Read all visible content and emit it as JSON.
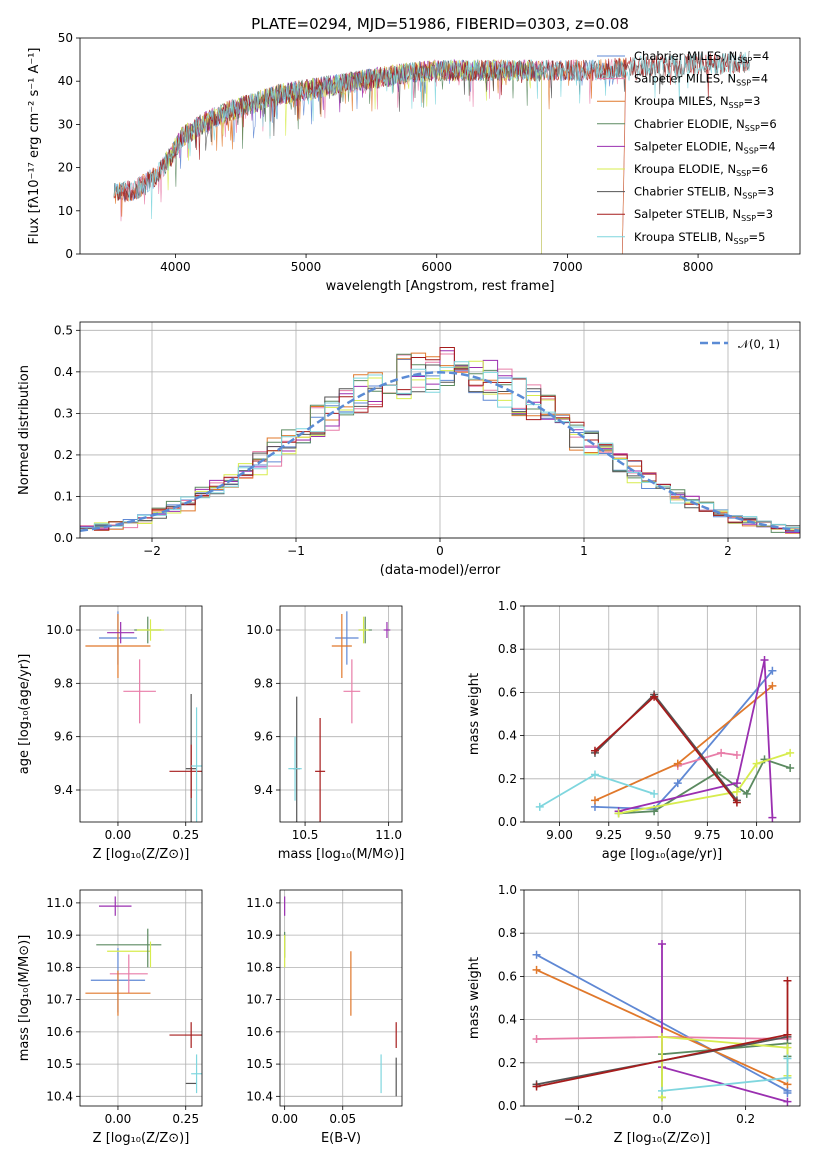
{
  "title": "PLATE=0294, MJD=51986, FIBERID=0303, z=0.08",
  "colors": {
    "chabrier_miles": "#5f88d4",
    "salpeter_miles": "#e87da8",
    "kroupa_miles": "#e0782b",
    "chabrier_elodie": "#5b8a60",
    "salpeter_elodie": "#9a2fb0",
    "kroupa_elodie": "#d7ec4e",
    "chabrier_stelib": "#555555",
    "salpeter_stelib": "#a61c1c",
    "kroupa_stelib": "#7fd6de"
  },
  "chart_data": [
    {
      "id": "spectrum",
      "type": "line",
      "xlabel": "wavelength [Angstrom, rest frame]",
      "ylabel": "Flux [fλ10⁻¹⁷ erg cm⁻² s⁻¹ A⁻¹]",
      "xlim": [
        3270,
        8780
      ],
      "ylim": [
        0,
        50
      ],
      "xticks": [
        4000,
        5000,
        6000,
        7000,
        8000
      ],
      "yticks": [
        0,
        10,
        20,
        30,
        40,
        50
      ],
      "grid": false,
      "legend_position": "right",
      "continuum": {
        "x": [
          3530,
          3700,
          3850,
          3950,
          4050,
          4200,
          4400,
          4600,
          4800,
          5000,
          5200,
          5400,
          5600,
          5800,
          6000,
          6200,
          6400,
          6600,
          6800,
          7000,
          7200,
          7400,
          7600,
          7800,
          8000,
          8200,
          8400
        ],
        "y": [
          14,
          15,
          18,
          22,
          27,
          30,
          33,
          35,
          37,
          38,
          39,
          40,
          41,
          42,
          42.5,
          42.5,
          42.5,
          42.5,
          42.5,
          42.5,
          42.5,
          43,
          43.5,
          43.5,
          44,
          44,
          44.5
        ]
      },
      "models": [
        {
          "name": "Chabrier MILES, N_SSP=4",
          "n_ssp": 4,
          "range": [
            3530,
            7450
          ],
          "color_key": "chabrier_miles"
        },
        {
          "name": "Salpeter MILES, N_SSP=4",
          "n_ssp": 4,
          "range": [
            3530,
            7450
          ],
          "color_key": "salpeter_miles"
        },
        {
          "name": "Kroupa MILES, N_SSP=3",
          "n_ssp": 3,
          "range": [
            3530,
            7450
          ],
          "color_key": "kroupa_miles"
        },
        {
          "name": "Chabrier ELODIE, N_SSP=6",
          "n_ssp": 6,
          "range": [
            3920,
            6800
          ],
          "color_key": "chabrier_elodie"
        },
        {
          "name": "Salpeter ELODIE, N_SSP=4",
          "n_ssp": 4,
          "range": [
            3920,
            6800
          ],
          "color_key": "salpeter_elodie"
        },
        {
          "name": "Kroupa ELODIE, N_SSP=6",
          "n_ssp": 6,
          "range": [
            3920,
            6800
          ],
          "color_key": "kroupa_elodie"
        },
        {
          "name": "Chabrier STELIB, N_SSP=3",
          "n_ssp": 3,
          "range": [
            3530,
            8400
          ],
          "color_key": "chabrier_stelib"
        },
        {
          "name": "Salpeter STELIB, N_SSP=3",
          "n_ssp": 3,
          "range": [
            3530,
            8400
          ],
          "color_key": "salpeter_stelib"
        },
        {
          "name": "Kroupa STELIB, N_SSP=5",
          "n_ssp": 5,
          "range": [
            3530,
            8400
          ],
          "color_key": "kroupa_stelib"
        }
      ]
    },
    {
      "id": "residuals",
      "type": "histogram",
      "xlabel": "(data-model)/error",
      "ylabel": "Normed distribution",
      "xlim": [
        -2.5,
        2.5
      ],
      "ylim": [
        0,
        0.52
      ],
      "xticks": [
        -2,
        -1,
        0,
        1,
        2
      ],
      "yticks": [
        0.0,
        0.1,
        0.2,
        0.3,
        0.4,
        0.5
      ],
      "grid": true,
      "legend_position": "top-right",
      "legend_label": "𝒩(0, 1)",
      "bin_width": 0.1,
      "reference": "normal(0,1)"
    },
    {
      "id": "age-vs-Z",
      "type": "scatter",
      "xlabel": "Z [log₁₀(Z/Z⊙)]",
      "ylabel": "age  [log₁₀(age/yr)]",
      "xlim": [
        -0.14,
        0.31
      ],
      "ylim": [
        9.28,
        10.09
      ],
      "xticks": [
        0.0,
        0.25
      ],
      "yticks": [
        9.4,
        9.6,
        9.8,
        10.0
      ],
      "grid": true,
      "points": [
        {
          "color_key": "chabrier_miles",
          "x": 0.0,
          "y": 9.97,
          "xerr": 0.07,
          "yerr": 0.1
        },
        {
          "color_key": "salpeter_miles",
          "x": 0.08,
          "y": 9.77,
          "xerr": 0.06,
          "yerr": 0.12
        },
        {
          "color_key": "kroupa_miles",
          "x": 0.0,
          "y": 9.94,
          "xerr": 0.12,
          "yerr": 0.12
        },
        {
          "color_key": "chabrier_elodie",
          "x": 0.11,
          "y": 10.0,
          "xerr": 0.05,
          "yerr": 0.05
        },
        {
          "color_key": "salpeter_elodie",
          "x": 0.01,
          "y": 9.99,
          "xerr": 0.05,
          "yerr": 0.04
        },
        {
          "color_key": "kroupa_elodie",
          "x": 0.12,
          "y": 10.0,
          "xerr": 0.05,
          "yerr": 0.04
        },
        {
          "color_key": "chabrier_stelib",
          "x": 0.27,
          "y": 9.48,
          "xerr": 0.02,
          "yerr": 0.28
        },
        {
          "color_key": "salpeter_stelib",
          "x": 0.27,
          "y": 9.47,
          "xerr": 0.08,
          "yerr": 0.1
        },
        {
          "color_key": "kroupa_stelib",
          "x": 0.29,
          "y": 9.49,
          "xerr": 0.02,
          "yerr": 0.22
        }
      ]
    },
    {
      "id": "age-vs-mass",
      "type": "scatter",
      "xlabel": "mass [log₁₀(M/M⊙)]",
      "ylabel": "",
      "xlim": [
        10.35,
        11.08
      ],
      "ylim": [
        9.28,
        10.09
      ],
      "xticks": [
        10.5,
        11.0
      ],
      "yticks": [
        9.4,
        9.6,
        9.8,
        10.0
      ],
      "grid": true,
      "points": [
        {
          "color_key": "chabrier_miles",
          "x": 10.75,
          "y": 9.97,
          "xerr": 0.07,
          "yerr": 0.1
        },
        {
          "color_key": "salpeter_miles",
          "x": 10.78,
          "y": 9.77,
          "xerr": 0.05,
          "yerr": 0.12
        },
        {
          "color_key": "kroupa_miles",
          "x": 10.72,
          "y": 9.94,
          "xerr": 0.06,
          "yerr": 0.12
        },
        {
          "color_key": "chabrier_elodie",
          "x": 10.86,
          "y": 10.0,
          "xerr": 0.04,
          "yerr": 0.05
        },
        {
          "color_key": "salpeter_elodie",
          "x": 10.99,
          "y": 10.0,
          "xerr": 0.02,
          "yerr": 0.03
        },
        {
          "color_key": "kroupa_elodie",
          "x": 10.85,
          "y": 10.0,
          "xerr": 0.03,
          "yerr": 0.05
        },
        {
          "color_key": "chabrier_stelib",
          "x": 10.45,
          "y": 9.48,
          "xerr": 0.02,
          "yerr": 0.27
        },
        {
          "color_key": "salpeter_stelib",
          "x": 10.59,
          "y": 9.47,
          "xerr": 0.03,
          "yerr": 0.2
        },
        {
          "color_key": "kroupa_stelib",
          "x": 10.44,
          "y": 9.48,
          "xerr": 0.04,
          "yerr": 0.12
        }
      ]
    },
    {
      "id": "weight-vs-age",
      "type": "line",
      "xlabel": "age  [log₁₀(age/yr)]",
      "ylabel": "mass weight",
      "xlim": [
        8.82,
        10.22
      ],
      "ylim": [
        0,
        1
      ],
      "xticks": [
        9.0,
        9.25,
        9.5,
        9.75,
        10.0
      ],
      "yticks": [
        0.0,
        0.2,
        0.4,
        0.6,
        0.8,
        1.0
      ],
      "grid": true,
      "series": [
        {
          "color_key": "chabrier_miles",
          "x": [
            9.18,
            9.48,
            9.6,
            10.08
          ],
          "y": [
            0.07,
            0.06,
            0.18,
            0.7
          ]
        },
        {
          "color_key": "salpeter_miles",
          "x": [
            9.6,
            9.82,
            9.9
          ],
          "y": [
            0.26,
            0.32,
            0.31
          ]
        },
        {
          "color_key": "kroupa_miles",
          "x": [
            9.18,
            9.6,
            10.08
          ],
          "y": [
            0.1,
            0.27,
            0.63
          ]
        },
        {
          "color_key": "chabrier_elodie",
          "x": [
            9.3,
            9.48,
            9.8,
            9.95,
            10.04,
            10.17
          ],
          "y": [
            0.04,
            0.05,
            0.23,
            0.13,
            0.29,
            0.25
          ]
        },
        {
          "color_key": "salpeter_elodie",
          "x": [
            9.3,
            9.9,
            10.04,
            10.08
          ],
          "y": [
            0.05,
            0.18,
            0.75,
            0.02
          ]
        },
        {
          "color_key": "kroupa_elodie",
          "x": [
            9.3,
            9.9,
            10.0,
            10.17
          ],
          "y": [
            0.04,
            0.14,
            0.27,
            0.32
          ]
        },
        {
          "color_key": "chabrier_stelib",
          "x": [
            9.18,
            9.48,
            9.9
          ],
          "y": [
            0.32,
            0.59,
            0.1
          ]
        },
        {
          "color_key": "salpeter_stelib",
          "x": [
            9.18,
            9.48,
            9.9
          ],
          "y": [
            0.33,
            0.58,
            0.09
          ]
        },
        {
          "color_key": "kroupa_stelib",
          "x": [
            8.9,
            9.18,
            9.48
          ],
          "y": [
            0.07,
            0.22,
            0.13
          ]
        }
      ]
    },
    {
      "id": "mass-vs-Z",
      "type": "scatter",
      "xlabel": "Z [log₁₀(Z/Z⊙)]",
      "ylabel": "mass [log₁₀(M/M⊙)]",
      "xlim": [
        -0.14,
        0.31
      ],
      "ylim": [
        10.37,
        11.04
      ],
      "xticks": [
        0.0,
        0.25
      ],
      "yticks": [
        10.4,
        10.5,
        10.6,
        10.7,
        10.8,
        10.9,
        11.0
      ],
      "grid": true,
      "points": [
        {
          "color_key": "chabrier_miles",
          "x": 0.0,
          "y": 10.76,
          "xerr": 0.1,
          "yerr": 0.1
        },
        {
          "color_key": "salpeter_miles",
          "x": 0.04,
          "y": 10.78,
          "xerr": 0.07,
          "yerr": 0.06
        },
        {
          "color_key": "kroupa_miles",
          "x": 0.0,
          "y": 10.72,
          "xerr": 0.12,
          "yerr": 0.07
        },
        {
          "color_key": "chabrier_elodie",
          "x": 0.04,
          "y": 10.87,
          "xerr": 0.12,
          "yerr": 0.0
        },
        {
          "color_key": "salpeter_elodie",
          "x": -0.01,
          "y": 10.99,
          "xerr": 0.06,
          "yerr": 0.03
        },
        {
          "color_key": "kroupa_elodie",
          "x": 0.04,
          "y": 10.85,
          "xerr": 0.08,
          "yerr": 0.0
        },
        {
          "color_key": "chabrier_elodie",
          "x": 0.11,
          "y": 10.86,
          "xerr": 0.0,
          "yerr": 0.06
        },
        {
          "color_key": "kroupa_elodie",
          "x": 0.12,
          "y": 10.84,
          "xerr": 0.0,
          "yerr": 0.04
        },
        {
          "color_key": "chabrier_stelib",
          "x": 0.27,
          "y": 10.44,
          "xerr": 0.02,
          "yerr": 0.0
        },
        {
          "color_key": "salpeter_stelib",
          "x": 0.27,
          "y": 10.59,
          "xerr": 0.08,
          "yerr": 0.04
        },
        {
          "color_key": "kroupa_stelib",
          "x": 0.29,
          "y": 10.47,
          "xerr": 0.02,
          "yerr": 0.06
        }
      ]
    },
    {
      "id": "mass-vs-ebv",
      "type": "scatter",
      "xlabel": "E(B-V)",
      "ylabel": "",
      "xlim": [
        -0.004,
        0.101
      ],
      "ylim": [
        10.37,
        11.04
      ],
      "xticks": [
        0.0,
        0.05
      ],
      "yticks": [
        10.4,
        10.5,
        10.6,
        10.7,
        10.8,
        10.9,
        11.0
      ],
      "grid": true,
      "points": [
        {
          "color_key": "salpeter_elodie",
          "x": 0.0,
          "y": 10.99,
          "xerr": 0.0,
          "yerr": 0.03
        },
        {
          "color_key": "chabrier_elodie",
          "x": 0.0,
          "y": 10.87,
          "xerr": 0.0,
          "yerr": 0.04
        },
        {
          "color_key": "kroupa_elodie",
          "x": 0.0,
          "y": 10.85,
          "xerr": 0.0,
          "yerr": 0.05
        },
        {
          "color_key": "kroupa_miles",
          "x": 0.057,
          "y": 10.75,
          "xerr": 0.0,
          "yerr": 0.1
        },
        {
          "color_key": "salpeter_stelib",
          "x": 0.096,
          "y": 10.59,
          "xerr": 0.0,
          "yerr": 0.04
        },
        {
          "color_key": "kroupa_stelib",
          "x": 0.083,
          "y": 10.47,
          "xerr": 0.0,
          "yerr": 0.06
        },
        {
          "color_key": "chabrier_stelib",
          "x": 0.096,
          "y": 10.46,
          "xerr": 0.0,
          "yerr": 0.06
        }
      ]
    },
    {
      "id": "weight-vs-Z",
      "type": "line",
      "xlabel": "Z [log₁₀(Z/Z⊙)]",
      "ylabel": "mass weight",
      "xlim": [
        -0.33,
        0.33
      ],
      "ylim": [
        0,
        1
      ],
      "xticks": [
        -0.2,
        0.0,
        0.2
      ],
      "yticks": [
        0.0,
        0.2,
        0.4,
        0.6,
        0.8,
        1.0
      ],
      "grid": true,
      "series": [
        {
          "color_key": "chabrier_miles",
          "x": [
            -0.3,
            0.3,
            0.3
          ],
          "y": [
            0.7,
            0.07,
            0.06
          ]
        },
        {
          "color_key": "salpeter_miles",
          "x": [
            -0.3,
            0.0,
            0.3
          ],
          "y": [
            0.31,
            0.32,
            0.31
          ]
        },
        {
          "color_key": "kroupa_miles",
          "x": [
            -0.3,
            0.3
          ],
          "y": [
            0.63,
            0.1
          ]
        },
        {
          "color_key": "chabrier_elodie",
          "x": [
            0.0,
            0.0,
            0.3,
            0.3
          ],
          "y": [
            0.04,
            0.24,
            0.29,
            0.23
          ]
        },
        {
          "color_key": "salpeter_elodie",
          "x": [
            0.0,
            0.0,
            0.3
          ],
          "y": [
            0.75,
            0.18,
            0.02
          ]
        },
        {
          "color_key": "kroupa_elodie",
          "x": [
            0.0,
            0.0,
            0.3,
            0.3
          ],
          "y": [
            0.04,
            0.32,
            0.27,
            0.14
          ]
        },
        {
          "color_key": "chabrier_stelib",
          "x": [
            -0.3,
            0.3
          ],
          "y": [
            0.1,
            0.32
          ]
        },
        {
          "color_key": "salpeter_stelib",
          "x": [
            -0.3,
            0.3,
            0.3
          ],
          "y": [
            0.09,
            0.33,
            0.58
          ]
        },
        {
          "color_key": "kroupa_stelib",
          "x": [
            0.0,
            0.3,
            0.3
          ],
          "y": [
            0.07,
            0.13,
            0.22
          ]
        }
      ]
    }
  ]
}
